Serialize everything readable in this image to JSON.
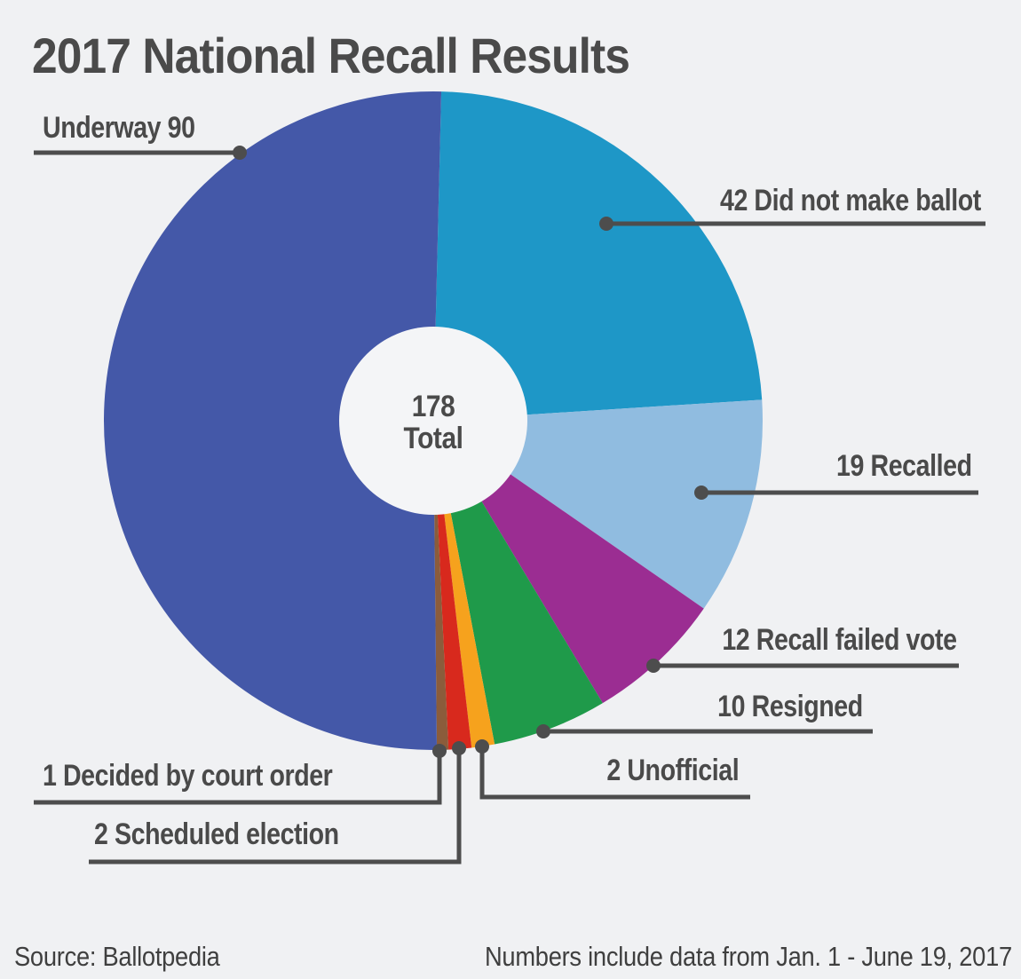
{
  "title": "2017 National Recall Results",
  "page": {
    "background_color": "#f0f1f3",
    "leader_line_color": "#4d4d4d",
    "text_color": "#4a4a4a",
    "donut_hole_color": "#f4f5f7"
  },
  "center": {
    "value": "178",
    "label": "Total"
  },
  "footer": {
    "source": "Source: Ballotpedia",
    "note": "Numbers include data from Jan. 1 - June 19, 2017"
  },
  "chart_data": {
    "type": "pie",
    "donut": true,
    "title": "2017 National Recall Results",
    "total": 178,
    "center_text": [
      "178",
      "Total"
    ],
    "start_angle_deg": 0,
    "direction": "clockwise",
    "legend_position": "callout-labels",
    "slices": [
      {
        "label": "Did not make ballot",
        "value": 42,
        "color": "#1e97c7",
        "display": "42 Did not make ballot"
      },
      {
        "label": "Recalled",
        "value": 19,
        "color": "#90bce0",
        "display": "19 Recalled"
      },
      {
        "label": "Recall failed vote",
        "value": 12,
        "color": "#9b2d92",
        "display": "12 Recall failed vote"
      },
      {
        "label": "Resigned",
        "value": 10,
        "color": "#1f9a4a",
        "display": "10 Resigned"
      },
      {
        "label": "Unofficial",
        "value": 2,
        "color": "#f6a21d",
        "display": "2 Unofficial"
      },
      {
        "label": "Scheduled election",
        "value": 2,
        "color": "#d8291d",
        "display": "2 Scheduled election"
      },
      {
        "label": "Decided by court order",
        "value": 1,
        "color": "#8b5c3b",
        "display": "1 Decided by court order"
      },
      {
        "label": "Underway",
        "value": 90,
        "color": "#4458a8",
        "display": "Underway 90"
      }
    ]
  }
}
